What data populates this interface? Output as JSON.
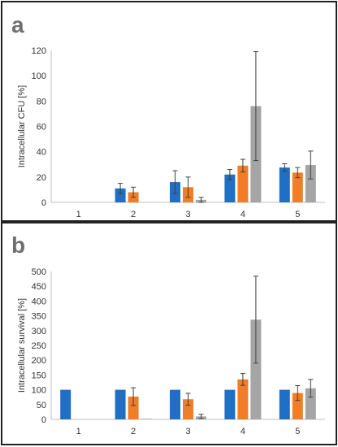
{
  "colors": {
    "series1": "#1f6fc5",
    "series2": "#f07d28",
    "series3": "#a5a5a5",
    "axis": "#bfbfbf",
    "errorbar": "#404040"
  },
  "chart_data": [
    {
      "type": "bar",
      "panel_label": "a",
      "ylabel": "Intracellular CFU [%]",
      "categories": [
        "1",
        "2",
        "3",
        "4",
        "5"
      ],
      "ylim": [
        0,
        120
      ],
      "yticks": [
        0,
        20,
        40,
        60,
        80,
        100,
        120
      ],
      "grid": false,
      "series": [
        {
          "values": [
            0,
            11,
            16,
            22,
            27.5
          ],
          "errors": [
            0,
            4,
            9,
            4,
            3
          ]
        },
        {
          "values": [
            0,
            8,
            12,
            29,
            23.5
          ],
          "errors": [
            0,
            4,
            8,
            5,
            4
          ]
        },
        {
          "values": [
            0,
            0,
            2,
            76,
            29.5
          ],
          "errors": [
            0,
            0,
            2,
            43,
            11
          ]
        }
      ]
    },
    {
      "type": "bar",
      "panel_label": "b",
      "ylabel": "Intracellular survival [%]",
      "categories": [
        "1",
        "2",
        "3",
        "4",
        "5"
      ],
      "ylim": [
        0,
        500
      ],
      "yticks": [
        0,
        50,
        100,
        150,
        200,
        250,
        300,
        350,
        400,
        450,
        500
      ],
      "grid": false,
      "series": [
        {
          "values": [
            100,
            100,
            100,
            100,
            100
          ],
          "errors": [
            0,
            0,
            0,
            0,
            0
          ]
        },
        {
          "values": [
            0,
            77,
            68,
            135,
            89
          ],
          "errors": [
            0,
            30,
            20,
            20,
            25
          ]
        },
        {
          "values": [
            0,
            2,
            10,
            337,
            105
          ],
          "errors": [
            0,
            0,
            7,
            147,
            30
          ]
        }
      ]
    }
  ]
}
